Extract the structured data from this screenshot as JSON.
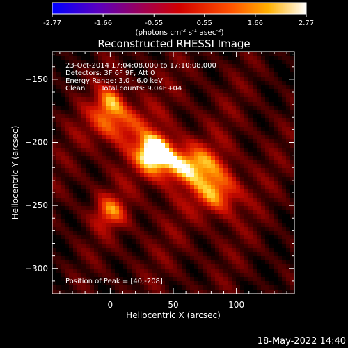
{
  "chart_data": {
    "type": "heatmap",
    "title": "Reconstructed RHESSI Image",
    "xlabel": "Heliocentric X (arcsec)",
    "ylabel": "Heliocentric Y (arcsec)",
    "xlim": [
      -46,
      146
    ],
    "ylim": [
      -320,
      -128
    ],
    "x_ticks": [
      0,
      50,
      100
    ],
    "y_ticks": [
      -150,
      -200,
      -250,
      -300
    ],
    "colorbar": {
      "ticks": [
        "-2.77",
        "-1.66",
        "-0.55",
        "0.55",
        "1.66",
        "2.77"
      ],
      "min": -2.77,
      "max": 2.77,
      "label": "(photons cm",
      "label_exp1": "-2",
      "label_mid": " s",
      "label_exp2": "-1",
      "label_mid2": " asec",
      "label_exp3": "-2",
      "label_end": ")"
    },
    "info": {
      "line1": "23-Oct-2014 17:04:08.000 to 17:10:08.000",
      "line2": "Detectors: 3F 6F 9F, Att 0",
      "line3": "Energy Range: 3.0 - 6.0 keV",
      "line4a": "Clean",
      "line4b": "Total counts: 9.04E+04"
    },
    "peak_label": "Position of Peak = [40,-208]",
    "peak": [
      40,
      -208
    ],
    "sources": [
      {
        "x": 35,
        "y": -208,
        "amp": 2.77,
        "sx": 10,
        "sy": 10
      },
      {
        "x": 60,
        "y": -218,
        "amp": 2.1,
        "sx": 18,
        "sy": 11
      },
      {
        "x": 85,
        "y": -240,
        "amp": 1.9,
        "sx": 12,
        "sy": 12
      },
      {
        "x": 5,
        "y": -185,
        "amp": 1.6,
        "sx": 16,
        "sy": 12
      },
      {
        "x": 0,
        "y": -168,
        "amp": 1.5,
        "sx": 8,
        "sy": 9
      },
      {
        "x": 0,
        "y": -255,
        "amp": 1.5,
        "sx": 9,
        "sy": 9
      }
    ],
    "background_level": 0.5,
    "timestamp": "18-May-2022 14:40"
  }
}
